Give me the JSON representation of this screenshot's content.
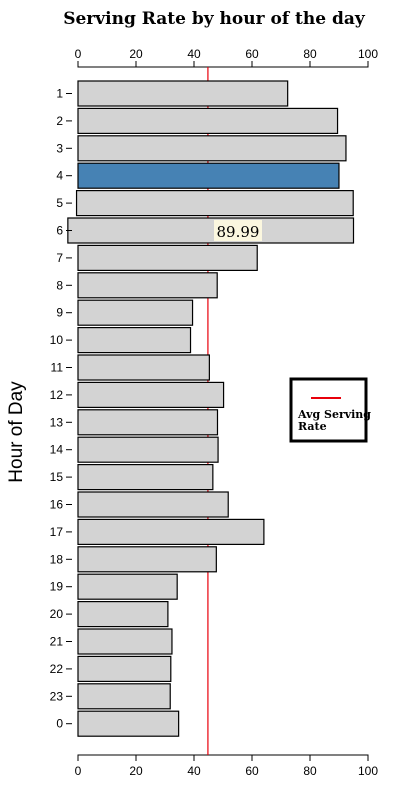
{
  "chart_data": {
    "type": "bar",
    "orientation": "horizontal",
    "title": "Serving Rate by hour of the day",
    "ylabel": "Hour of Day",
    "xlim": [
      0,
      100
    ],
    "x_ticks": [
      "0",
      "20",
      "40",
      "60",
      "80",
      "100"
    ],
    "categories": [
      "1",
      "2",
      "3",
      "4",
      "5",
      "6",
      "7",
      "8",
      "9",
      "10",
      "11",
      "12",
      "13",
      "14",
      "15",
      "16",
      "17",
      "18",
      "19",
      "20",
      "21",
      "22",
      "23",
      "0"
    ],
    "bar_start": [
      0,
      0,
      0,
      0,
      -0.5,
      -3.5,
      0,
      0,
      0,
      0,
      0,
      0,
      0,
      0,
      0,
      0,
      0,
      0,
      0,
      0,
      0,
      0,
      0,
      0
    ],
    "values": [
      72.3,
      89.5,
      92.4,
      89.99,
      94.9,
      95.0,
      61.8,
      48.0,
      39.5,
      38.8,
      45.3,
      50.2,
      48.1,
      48.3,
      46.5,
      51.8,
      64.1,
      47.7,
      34.2,
      31.0,
      32.4,
      32.0,
      31.8,
      34.7
    ],
    "highlight_index": 3,
    "highlight_color": "#4682b4",
    "bar_color": "#d3d3d3",
    "average_line": {
      "value": 44.8,
      "color": "#e8000b"
    },
    "legend": {
      "label_line1": "Avg Serving",
      "label_line2": "Rate",
      "placement": "right"
    },
    "tooltip": {
      "text": "89.99",
      "category": "6"
    }
  }
}
